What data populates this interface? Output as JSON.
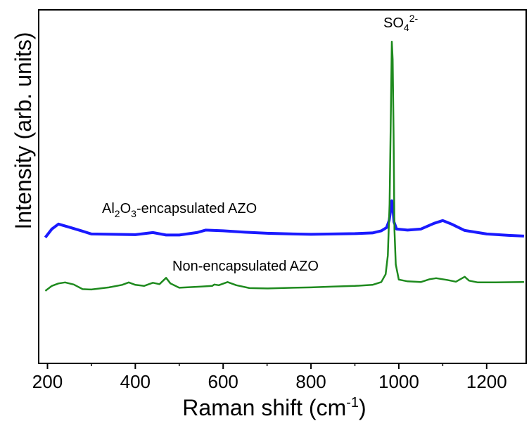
{
  "chart_data": {
    "type": "line",
    "xlabel": "Raman shift (cm",
    "xlabel_sup": "-1",
    "xlabel_close": ")",
    "ylabel": "Intensity (arb. units)",
    "xlim": [
      180,
      1290
    ],
    "ylim": [
      0,
      100
    ],
    "x_ticks": [
      200,
      400,
      600,
      800,
      1000,
      1200
    ],
    "x_tick_labels": [
      "200",
      "400",
      "600",
      "800",
      "1000",
      "1200"
    ],
    "peak_label": {
      "text": "SO",
      "sub": "4",
      "sup": "2-",
      "x": 985
    },
    "series": [
      {
        "name": "Al2O3-encapsulated AZO",
        "label_parts": {
          "a": "Al",
          "b": "2",
          "c": "O",
          "d": "3",
          "e": "-encapsulated AZO"
        },
        "color": "#1a1aff",
        "points": [
          [
            195,
            35.6
          ],
          [
            210,
            38.0
          ],
          [
            225,
            39.4
          ],
          [
            250,
            38.5
          ],
          [
            280,
            37.4
          ],
          [
            300,
            36.6
          ],
          [
            350,
            36.5
          ],
          [
            400,
            36.4
          ],
          [
            440,
            37.0
          ],
          [
            470,
            36.3
          ],
          [
            500,
            36.3
          ],
          [
            540,
            37.0
          ],
          [
            560,
            37.7
          ],
          [
            600,
            37.5
          ],
          [
            650,
            37.1
          ],
          [
            700,
            36.8
          ],
          [
            760,
            36.6
          ],
          [
            800,
            36.5
          ],
          [
            850,
            36.6
          ],
          [
            900,
            36.7
          ],
          [
            940,
            36.9
          ],
          [
            960,
            37.5
          ],
          [
            972,
            38.4
          ],
          [
            978,
            40.4
          ],
          [
            981,
            43.0
          ],
          [
            984,
            46.0
          ],
          [
            986,
            44.5
          ],
          [
            989,
            40.0
          ],
          [
            995,
            38.0
          ],
          [
            1020,
            37.7
          ],
          [
            1050,
            38.0
          ],
          [
            1080,
            39.6
          ],
          [
            1100,
            40.4
          ],
          [
            1120,
            39.4
          ],
          [
            1150,
            37.6
          ],
          [
            1200,
            36.6
          ],
          [
            1250,
            36.2
          ],
          [
            1285,
            36.0
          ]
        ]
      },
      {
        "name": "Non-encapsulated AZO",
        "color": "#1e8a1e",
        "points": [
          [
            195,
            20.5
          ],
          [
            210,
            21.9
          ],
          [
            225,
            22.6
          ],
          [
            240,
            22.9
          ],
          [
            260,
            22.3
          ],
          [
            280,
            21.0
          ],
          [
            300,
            20.9
          ],
          [
            340,
            21.5
          ],
          [
            370,
            22.2
          ],
          [
            385,
            22.9
          ],
          [
            400,
            22.2
          ],
          [
            420,
            21.9
          ],
          [
            440,
            22.8
          ],
          [
            455,
            22.4
          ],
          [
            470,
            24.2
          ],
          [
            480,
            22.6
          ],
          [
            500,
            21.4
          ],
          [
            550,
            21.7
          ],
          [
            575,
            21.9
          ],
          [
            580,
            22.3
          ],
          [
            590,
            22.1
          ],
          [
            610,
            23.0
          ],
          [
            630,
            22.1
          ],
          [
            660,
            21.3
          ],
          [
            700,
            21.2
          ],
          [
            760,
            21.4
          ],
          [
            800,
            21.5
          ],
          [
            850,
            21.7
          ],
          [
            900,
            21.9
          ],
          [
            940,
            22.2
          ],
          [
            960,
            23.0
          ],
          [
            970,
            25.2
          ],
          [
            975,
            30.5
          ],
          [
            979,
            45.0
          ],
          [
            982,
            72.0
          ],
          [
            984,
            91.0
          ],
          [
            986,
            86.0
          ],
          [
            988,
            65.0
          ],
          [
            990,
            38.0
          ],
          [
            993,
            28.0
          ],
          [
            1000,
            23.7
          ],
          [
            1020,
            23.2
          ],
          [
            1050,
            23.0
          ],
          [
            1070,
            23.8
          ],
          [
            1085,
            24.1
          ],
          [
            1110,
            23.6
          ],
          [
            1130,
            23.1
          ],
          [
            1150,
            24.5
          ],
          [
            1160,
            23.4
          ],
          [
            1180,
            22.9
          ],
          [
            1220,
            22.9
          ],
          [
            1285,
            23.0
          ]
        ]
      }
    ],
    "legend": "inline labels"
  }
}
